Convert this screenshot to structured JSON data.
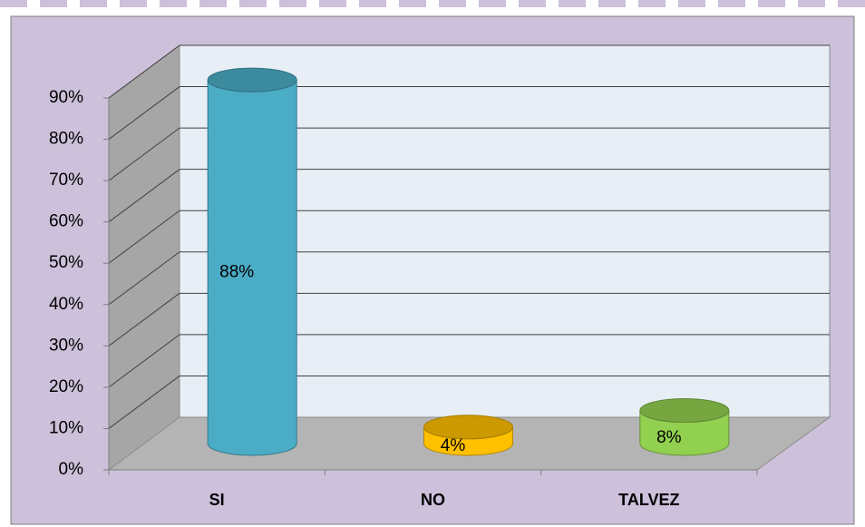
{
  "chart_data": {
    "type": "bar3d",
    "categories": [
      "SI",
      "NO",
      "TALVEZ"
    ],
    "values": [
      88,
      4,
      8
    ],
    "value_labels": [
      "88%",
      "4%",
      "8%"
    ],
    "colors": [
      "#4bacc6",
      "#ffc000",
      "#92d050"
    ],
    "ylim": [
      0,
      90
    ],
    "yticks": [
      {
        "value": 0,
        "label": "0%"
      },
      {
        "value": 10,
        "label": "10%"
      },
      {
        "value": 20,
        "label": "20%"
      },
      {
        "value": 30,
        "label": "30%"
      },
      {
        "value": 40,
        "label": "40%"
      },
      {
        "value": 50,
        "label": "50%"
      },
      {
        "value": 60,
        "label": "60%"
      },
      {
        "value": 70,
        "label": "70%"
      },
      {
        "value": 80,
        "label": "80%"
      },
      {
        "value": 90,
        "label": "90%"
      }
    ],
    "grid": true
  }
}
